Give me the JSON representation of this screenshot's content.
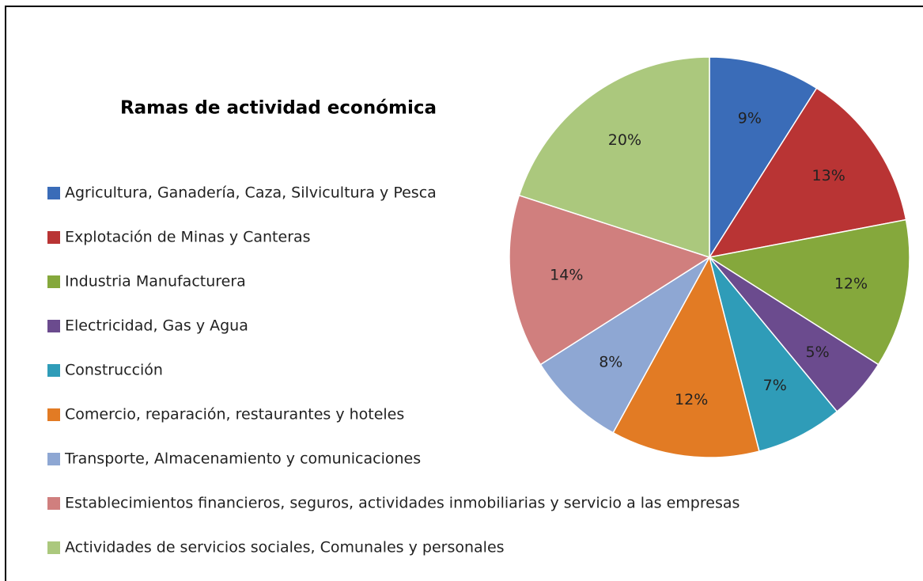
{
  "chart_data": {
    "type": "pie",
    "title": "Ramas de actividad económica",
    "categories": [
      "Agricultura, Ganadería, Caza, Silvicultura y Pesca",
      "Explotación de Minas y Canteras",
      "Industria Manufacturera",
      "Electricidad, Gas y Agua",
      "Construcción",
      "Comercio, reparación, restaurantes y hoteles",
      "Transporte, Almacenamiento y comunicaciones",
      "Establecimientos financieros, seguros, actividades inmobiliarias y servicio a las empresas",
      "Actividades de servicios sociales, Comunales y personales"
    ],
    "values": [
      9,
      13,
      12,
      5,
      7,
      12,
      8,
      14,
      20
    ],
    "value_labels": [
      "9%",
      "13%",
      "12%",
      "5%",
      "7%",
      "12%",
      "8%",
      "14%",
      "20%"
    ],
    "colors": [
      "#3a6cb8",
      "#b93434",
      "#85a83c",
      "#6b4b8e",
      "#2f9cb8",
      "#e27b24",
      "#8ea7d3",
      "#d07f7e",
      "#abc87d"
    ],
    "legend": "left"
  }
}
